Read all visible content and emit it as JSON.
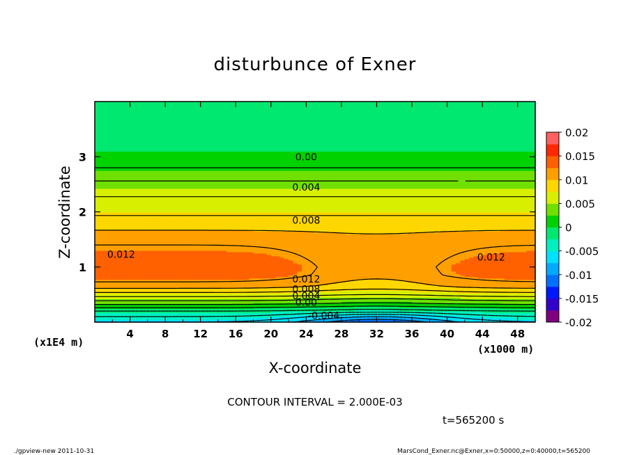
{
  "chart_data": {
    "type": "heatmap",
    "title": "disturbunce of Exner",
    "xlabel": "X-coordinate",
    "ylabel": "Z-coordinate",
    "x_unit": "(x1000 m)",
    "y_unit": "(x1E4 m)",
    "xlim": [
      0,
      50
    ],
    "ylim": [
      0,
      4
    ],
    "x_ticks": [
      "4",
      "8",
      "12",
      "16",
      "20",
      "24",
      "28",
      "32",
      "36",
      "40",
      "44",
      "48"
    ],
    "y_ticks": [
      "1",
      "2",
      "3"
    ],
    "colorbar": {
      "levels": [
        -0.02,
        -0.0175,
        -0.015,
        -0.0125,
        -0.01,
        -0.0075,
        -0.005,
        -0.0025,
        0,
        0.0025,
        0.005,
        0.0075,
        0.01,
        0.0125,
        0.015,
        0.0175,
        0.02
      ],
      "tick_labels": [
        "0.02",
        "0.015",
        "0.01",
        "0.005",
        "0",
        "-0.005",
        "-0.01",
        "-0.015",
        "-0.02"
      ],
      "colors": [
        "#800080",
        "#3300cc",
        "#0018ff",
        "#0070ff",
        "#00aaff",
        "#00e0ff",
        "#00f0c0",
        "#00e870",
        "#00d200",
        "#70e000",
        "#d8f000",
        "#ffd700",
        "#ffa000",
        "#ff6000",
        "#ff2800",
        "#ff6060",
        "#ff9090"
      ]
    },
    "contour_interval": 0.002,
    "contour_labels": [
      "0.00",
      "0.004",
      "0.008",
      "0.012",
      "0.012",
      "0.012",
      "0.008",
      "0.004",
      "0.00",
      "-0.004"
    ],
    "field_profile_edges": {
      "z": [
        0,
        0.1,
        0.2,
        0.35,
        0.5,
        0.65,
        0.85,
        1.0,
        1.2,
        1.4,
        1.6,
        1.8,
        2.0,
        2.2,
        2.5,
        2.8,
        3.0,
        3.1,
        3.3,
        3.6,
        4.0
      ],
      "value": [
        -0.006,
        -0.004,
        -0.002,
        0.003,
        0.007,
        0.011,
        0.0135,
        0.014,
        0.013,
        0.012,
        0.0105,
        0.009,
        0.0075,
        0.0065,
        0.0045,
        0.002,
        0.0005,
        0.0,
        -0.001,
        -0.0015,
        -0.002
      ]
    },
    "field_profile_center": {
      "z": [
        0,
        0.1,
        0.2,
        0.35,
        0.5,
        0.65,
        0.85,
        1.0,
        1.2,
        1.4,
        1.6,
        1.8,
        2.0,
        2.2,
        2.5,
        2.8,
        3.0,
        3.1,
        3.3,
        3.6,
        4.0
      ],
      "value": [
        -0.012,
        -0.008,
        -0.003,
        0.002,
        0.006,
        0.009,
        0.0105,
        0.0105,
        0.0105,
        0.0105,
        0.01,
        0.009,
        0.0075,
        0.0065,
        0.0045,
        0.002,
        0.0005,
        0.0,
        -0.001,
        -0.0015,
        -0.002
      ]
    },
    "center_x": 32,
    "center_halfwidth": 9
  },
  "footer": {
    "contour_interval_text": "CONTOUR INTERVAL = 2.000E-03",
    "time_text": "t=565200 s",
    "program_text": "./gpview-new   2011-10-31",
    "file_text": "MarsCond_Exner.nc@Exner,x=0:50000,z=0:40000,t=565200"
  }
}
